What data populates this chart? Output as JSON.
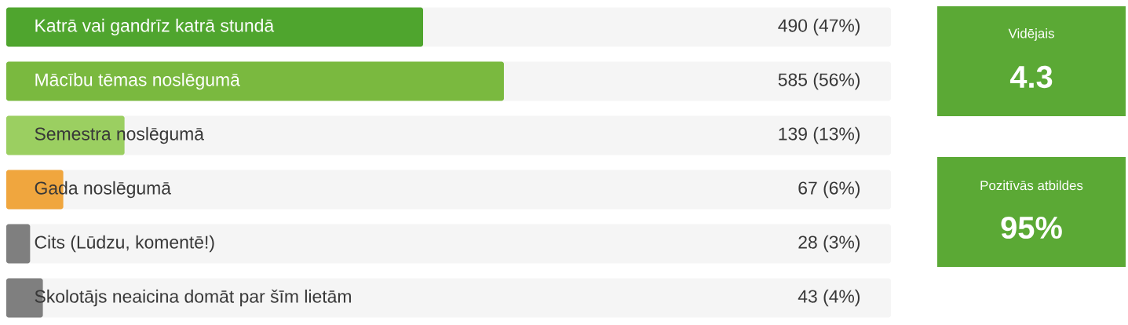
{
  "chart_data": [
    {
      "type": "bar",
      "orientation": "horizontal",
      "categories": [
        "Katrā vai gandrīz katrā stundā",
        "Mācību tēmas noslēgumā",
        "Semestra noslēgumā",
        "Gada noslēgumā",
        "Cits (Lūdzu, komentē!)",
        "Skolotājs neaicina domāt par šīm lietām"
      ],
      "values": [
        490,
        585,
        139,
        67,
        28,
        43
      ],
      "colors": [
        "#4fa52e",
        "#7ab93f",
        "#9bcf61",
        "#f0a63e",
        "#7f7f7f",
        "#7f7f7f"
      ],
      "value_labels": [
        "490 (47%)",
        "585 (56%)",
        "139 (13%)",
        "67 (6%)",
        "28 (3%)",
        "43 (4%)"
      ],
      "xlim": [
        0,
        1040
      ]
    },
    {
      "type": "other",
      "title": "Vidējais",
      "annotations": [
        "4.3"
      ],
      "color": "#5ba935"
    },
    {
      "type": "other",
      "title": "Pozitīvās atbildes",
      "annotations": [
        "95%"
      ],
      "color": "#5ba935"
    }
  ]
}
